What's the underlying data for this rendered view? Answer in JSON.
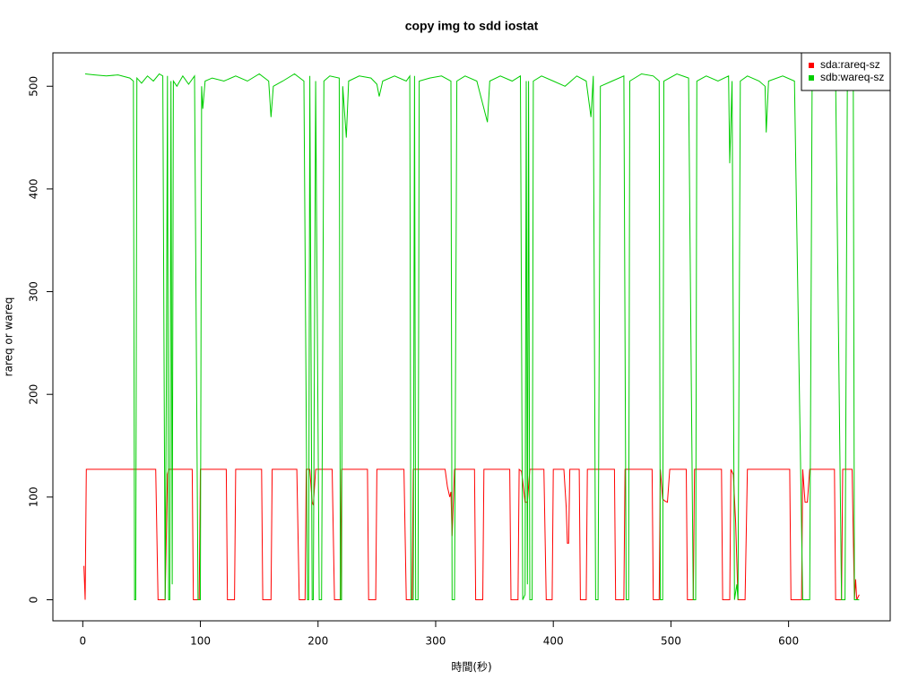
{
  "chart_data": {
    "type": "line",
    "title": "copy img to sdd iostat",
    "x_label": "時間(秒)",
    "y_label": "rareq or wareq",
    "xlim": [
      -25.4,
      686.4
    ],
    "ylim": [
      -20.5,
      532.5
    ],
    "xticks": [
      0,
      100,
      200,
      300,
      400,
      500,
      600
    ],
    "yticks": [
      0,
      100,
      200,
      300,
      400,
      500
    ],
    "legend": "top-right",
    "series": [
      {
        "name": "sda:rareq-sz",
        "color": "#ff0000",
        "x": [
          1,
          2,
          3,
          62,
          64,
          70,
          72,
          73,
          93,
          94,
          99,
          100,
          122,
          123,
          129,
          130,
          152,
          153,
          160,
          161,
          182,
          184,
          189,
          190,
          193,
          195,
          196,
          198,
          212,
          214,
          219,
          220,
          242,
          243,
          249,
          250,
          273,
          275,
          280,
          281,
          308,
          310,
          312,
          313,
          314,
          316,
          333,
          334,
          340,
          341,
          363,
          364,
          370,
          371,
          373,
          376,
          378,
          380,
          392,
          394,
          399,
          400,
          409,
          411,
          412,
          413,
          414,
          422,
          423,
          428,
          429,
          452,
          453,
          460,
          461,
          484,
          485,
          490,
          491,
          493,
          495,
          497,
          499,
          513,
          514,
          519,
          520,
          543,
          544,
          550,
          551,
          553,
          555,
          557,
          563,
          565,
          601,
          602,
          611,
          612,
          614,
          616,
          618,
          639,
          640,
          645,
          646,
          654,
          656,
          657,
          658,
          660
        ],
        "values": [
          33,
          0,
          127,
          127,
          0,
          0,
          122,
          127,
          127,
          0,
          0,
          127,
          127,
          0,
          0,
          127,
          127,
          0,
          0,
          127,
          127,
          0,
          0,
          127,
          127,
          95,
          92,
          127,
          127,
          0,
          0,
          127,
          127,
          0,
          0,
          127,
          127,
          0,
          0,
          127,
          127,
          110,
          100,
          105,
          62,
          127,
          127,
          0,
          0,
          127,
          127,
          0,
          0,
          127,
          125,
          95,
          95,
          127,
          127,
          0,
          0,
          127,
          127,
          90,
          55,
          55,
          127,
          127,
          0,
          0,
          127,
          127,
          0,
          0,
          127,
          127,
          0,
          0,
          127,
          98,
          96,
          95,
          127,
          127,
          0,
          0,
          127,
          127,
          0,
          0,
          127,
          122,
          75,
          0,
          0,
          127,
          127,
          0,
          0,
          127,
          95,
          95,
          127,
          127,
          0,
          0,
          127,
          127,
          0,
          20,
          0,
          5
        ]
      },
      {
        "name": "sdb:wareq-sz",
        "color": "#00cd00",
        "x": [
          2,
          10,
          20,
          30,
          40,
          43,
          44,
          45,
          46,
          50,
          55,
          60,
          65,
          68,
          70,
          71,
          72,
          73,
          74,
          75,
          76,
          77,
          80,
          85,
          90,
          95,
          98,
          100,
          101,
          102,
          104,
          110,
          120,
          130,
          140,
          150,
          158,
          160,
          162,
          170,
          180,
          188,
          191,
          192,
          193,
          195,
          196,
          198,
          201,
          203,
          205,
          210,
          218,
          219,
          220,
          221,
          224,
          226,
          235,
          245,
          250,
          252,
          255,
          265,
          275,
          278,
          279,
          281,
          282,
          283,
          285,
          286,
          295,
          305,
          313,
          314,
          316,
          318,
          325,
          335,
          344,
          346,
          355,
          365,
          372,
          374,
          376,
          377,
          378,
          379,
          380,
          382,
          383,
          390,
          400,
          410,
          420,
          428,
          432,
          434,
          436,
          438,
          440,
          450,
          460,
          462,
          464,
          465,
          475,
          485,
          490,
          491,
          493,
          494,
          505,
          515,
          519,
          521,
          522,
          530,
          540,
          549,
          550,
          552,
          554,
          556,
          557,
          559,
          565,
          575,
          580,
          581,
          583,
          595,
          605,
          612,
          618,
          620,
          630,
          640,
          645,
          648,
          650,
          655,
          656,
          658,
          660
        ],
        "values": [
          512,
          511,
          510,
          511,
          508,
          505,
          0,
          0,
          508,
          503,
          510,
          505,
          512,
          510,
          0,
          200,
          510,
          0,
          0,
          505,
          15,
          505,
          500,
          510,
          502,
          510,
          0,
          0,
          500,
          478,
          505,
          508,
          505,
          510,
          505,
          512,
          505,
          470,
          500,
          505,
          512,
          505,
          0,
          0,
          510,
          0,
          0,
          505,
          0,
          0,
          505,
          510,
          508,
          0,
          0,
          500,
          450,
          505,
          510,
          508,
          502,
          490,
          505,
          510,
          505,
          510,
          0,
          0,
          510,
          0,
          0,
          505,
          508,
          510,
          505,
          0,
          0,
          505,
          510,
          505,
          465,
          505,
          510,
          505,
          510,
          0,
          5,
          505,
          15,
          505,
          0,
          0,
          505,
          510,
          505,
          500,
          510,
          505,
          470,
          510,
          0,
          0,
          500,
          505,
          510,
          0,
          0,
          505,
          512,
          510,
          505,
          0,
          0,
          505,
          512,
          508,
          0,
          0,
          505,
          510,
          505,
          510,
          425,
          505,
          0,
          15,
          0,
          505,
          510,
          505,
          500,
          455,
          505,
          510,
          505,
          0,
          0,
          505,
          505,
          508,
          0,
          0,
          505,
          508,
          0,
          0,
          0
        ]
      }
    ]
  }
}
